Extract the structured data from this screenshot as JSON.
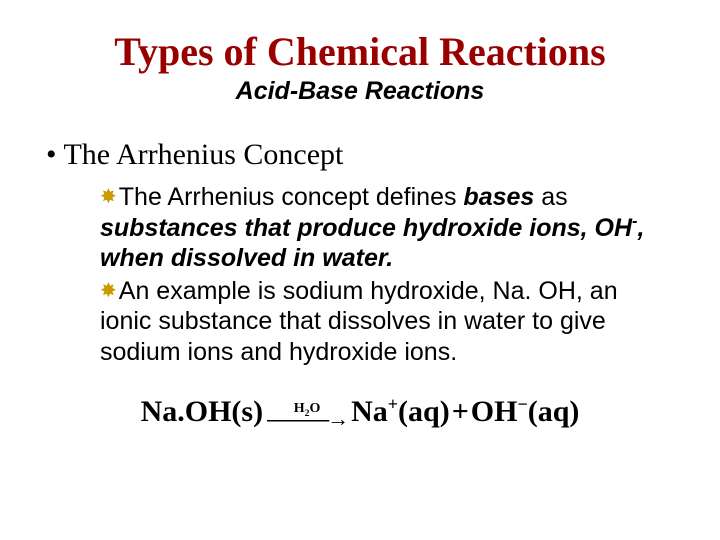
{
  "title": "Types of Chemical Reactions",
  "subtitle": "Acid-Base Reactions",
  "bullet_heading": "• The Arrhenius Concept",
  "sub1_lead": "The Arrhenius concept defines ",
  "sub1_bases": "bases",
  "sub1_as": " as ",
  "sub1_rest1": "substances that produce hydroxide ions, OH",
  "sub1_super": "-",
  "sub1_rest2": ", when dissolved in water.",
  "sub2": "An example is sodium hydroxide, Na. OH, an ionic substance that dissolves in water to give sodium ions and hydroxide ions.",
  "eq": {
    "lhs": "Na.OH(s)",
    "arrow_top_a": "H",
    "arrow_top_sub": "2",
    "arrow_top_b": "O",
    "arrow": "———→",
    "rhs_a": "Na",
    "rhs_a_sup": "+",
    "rhs_a_tail": "(aq)",
    "plus": "+",
    "rhs_b": "OH",
    "rhs_b_sup": "−",
    "rhs_b_tail": "(aq)"
  },
  "colors": {
    "title": "#990000",
    "star": "#cc9900",
    "text": "#000000",
    "bg": "#ffffff"
  }
}
